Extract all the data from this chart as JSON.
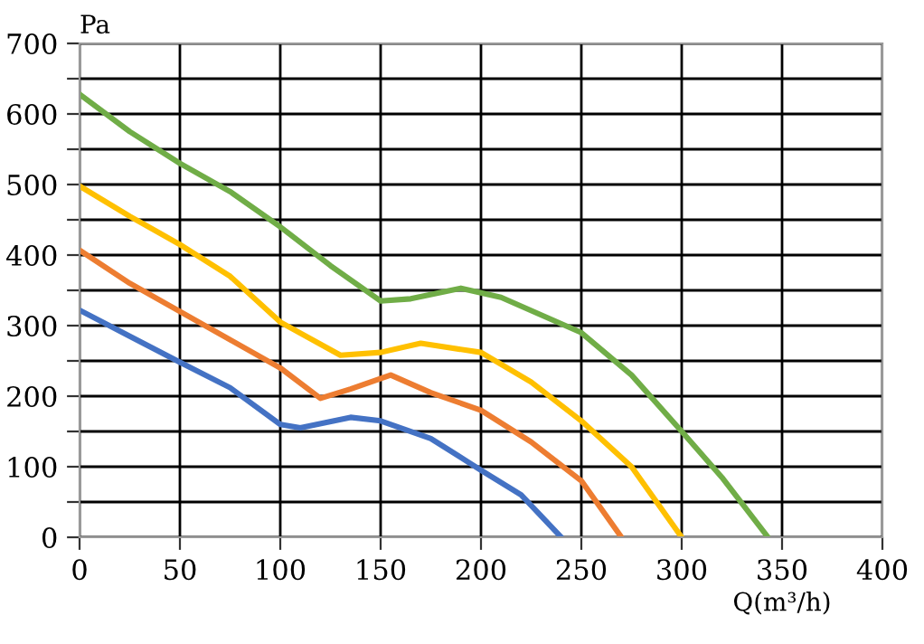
{
  "chart_data": {
    "type": "line",
    "ylabel": "Pa",
    "xlabel": "Q(m³/h)",
    "xlim": [
      0,
      400
    ],
    "xticks": [
      0,
      50,
      100,
      150,
      200,
      250,
      300,
      350,
      400
    ],
    "ylim": [
      0,
      700
    ],
    "yticks": [
      0,
      {
        "value": 50,
        "label": null
      },
      100,
      {
        "value": 150,
        "label": null
      },
      200,
      {
        "value": 250,
        "label": null
      },
      300,
      {
        "value": 350,
        "label": null
      },
      400,
      {
        "value": 450,
        "label": null
      },
      500,
      {
        "value": 550,
        "label": null
      },
      600,
      {
        "value": 650,
        "label": null
      },
      700
    ],
    "grid": true,
    "marker": "none",
    "line_style": "solid",
    "series": [
      {
        "color": "#4472c4",
        "x": [
          0,
          25,
          50,
          75,
          100,
          110,
          135,
          150,
          175,
          200,
          220,
          240
        ],
        "values": [
          322,
          285,
          248,
          212,
          160,
          155,
          170,
          165,
          140,
          95,
          60,
          0
        ]
      },
      {
        "color": "#ed7d31",
        "x": [
          0,
          25,
          50,
          75,
          100,
          120,
          135,
          155,
          175,
          200,
          225,
          250,
          270
        ],
        "values": [
          407,
          360,
          320,
          280,
          240,
          197,
          210,
          230,
          205,
          180,
          135,
          80,
          0
        ]
      },
      {
        "color": "#ffc000",
        "x": [
          0,
          25,
          50,
          75,
          100,
          130,
          150,
          170,
          200,
          225,
          250,
          275,
          300
        ],
        "values": [
          498,
          455,
          415,
          370,
          305,
          258,
          262,
          275,
          262,
          220,
          165,
          100,
          0
        ]
      },
      {
        "color": "#70ad47",
        "x": [
          0,
          25,
          50,
          75,
          100,
          125,
          150,
          165,
          190,
          210,
          250,
          275,
          300,
          320,
          343
        ],
        "values": [
          628,
          575,
          530,
          490,
          440,
          385,
          335,
          338,
          353,
          340,
          290,
          230,
          150,
          85,
          0
        ]
      }
    ]
  }
}
